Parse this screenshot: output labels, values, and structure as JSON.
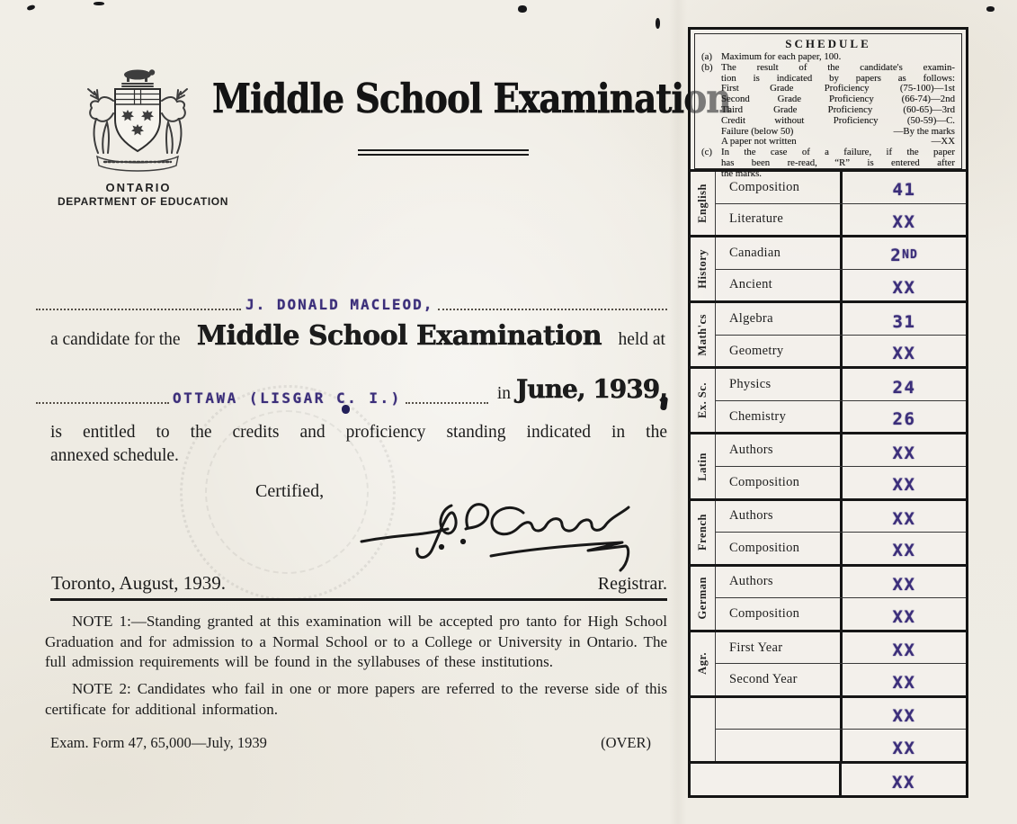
{
  "header": {
    "crest_caption_line1": "ONTARIO",
    "crest_caption_line2": "DEPARTMENT OF EDUCATION",
    "title": "Middle School Examination"
  },
  "body": {
    "candidate_name": "J. DONALD MACLEOD,",
    "candidate_prefix": "a candidate for the",
    "exam_name_inline": "Middle School Examination",
    "held_at": "held at",
    "location": "OTTAWA (LISGAR C. I.)",
    "in_word": "in",
    "session": "June, 1939,",
    "entitled_line1": "is entitled to the credits and proficiency standing indicated in the",
    "entitled_line2": "annexed schedule.",
    "certified": "Certified,",
    "place_date": "Toronto, August, 1939.",
    "registrar": "Registrar.",
    "note1": "NOTE 1:—Standing granted at this examination will be accepted pro tanto for High School Graduation and for admission to a Normal School or to a College or University in Ontario.  The full admission requirements will be found in the syllabuses of these institutions.",
    "note2": "NOTE 2:  Candidates who fail in one or more papers are referred to the reverse side of this certificate for additional information.",
    "form_id": "Exam. Form 47, 65,000—July, 1939",
    "over": "(OVER)"
  },
  "schedule": {
    "title": "SCHEDULE",
    "notes": [
      {
        "label": "(a)",
        "text": "Maximum for each paper, 100."
      },
      {
        "label": "(b)",
        "text": "The result of the candidate's examin-",
        "just": true
      },
      {
        "text": "tion is indicated by papers as follows:",
        "indent": true,
        "just": true
      },
      {
        "text": "First Grade Proficiency (75-100)—1st",
        "indent": true,
        "just": true
      },
      {
        "text": "Second Grade Proficiency (66-74)—2nd",
        "indent": true,
        "just": true
      },
      {
        "text": "Third Grade Proficiency (60-65)—3rd",
        "indent": true,
        "just": true
      },
      {
        "text": "Credit without Proficiency (50-59)—C.",
        "indent": true,
        "just": true
      },
      {
        "text": "Failure (below 50)",
        "right": "—By the marks",
        "indent": true
      },
      {
        "text": "A paper not written",
        "right": "—XX",
        "indent": true
      },
      {
        "label": "(c)",
        "text": "In the case of a failure, if the paper",
        "just": true
      },
      {
        "text": "has been re-read, “R” is entered after",
        "indent": true,
        "just": true
      },
      {
        "text": "the marks.",
        "indent": true
      }
    ],
    "groups": [
      {
        "label": "English",
        "rows": [
          {
            "subject": "Composition",
            "mark": "41"
          },
          {
            "subject": "Literature",
            "mark": "XX"
          }
        ]
      },
      {
        "label": "History",
        "rows": [
          {
            "subject": "Canadian",
            "mark": "2ND"
          },
          {
            "subject": "Ancient",
            "mark": "XX"
          }
        ]
      },
      {
        "label": "Math'cs",
        "rows": [
          {
            "subject": "Algebra",
            "mark": "31"
          },
          {
            "subject": "Geometry",
            "mark": "XX"
          }
        ]
      },
      {
        "label": "Ex. Sc.",
        "rows": [
          {
            "subject": "Physics",
            "mark": "24"
          },
          {
            "subject": "Chemistry",
            "mark": "26"
          }
        ]
      },
      {
        "label": "Latin",
        "rows": [
          {
            "subject": "Authors",
            "mark": "XX"
          },
          {
            "subject": "Composition",
            "mark": "XX"
          }
        ]
      },
      {
        "label": "French",
        "rows": [
          {
            "subject": "Authors",
            "mark": "XX"
          },
          {
            "subject": "Composition",
            "mark": "XX"
          }
        ]
      },
      {
        "label": "German",
        "rows": [
          {
            "subject": "Authors",
            "mark": "XX"
          },
          {
            "subject": "Composition",
            "mark": "XX"
          }
        ]
      },
      {
        "label": "Agr.",
        "rows": [
          {
            "subject": "First Year",
            "mark": "XX"
          },
          {
            "subject": "Second Year",
            "mark": "XX"
          }
        ]
      },
      {
        "label": "",
        "rows": [
          {
            "subject": "",
            "mark": "XX"
          },
          {
            "subject": "",
            "mark": "XX"
          }
        ]
      },
      {
        "label": null,
        "rows": [
          {
            "subject": "",
            "mark": "XX"
          }
        ]
      }
    ]
  },
  "colors": {
    "ink": "#1c1c1c",
    "typed_ink": "#3b2e7a",
    "paper": "#efece4"
  }
}
